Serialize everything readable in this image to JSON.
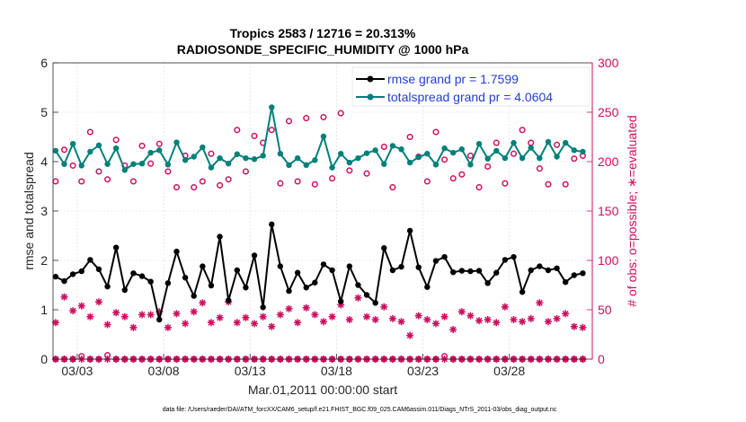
{
  "chart_data": {
    "type": "line",
    "title_line1": "Tropics 2583 / 12716 = 20.313%",
    "title_line2": "RADIOSONDE_SPECIFIC_HUMIDITY @ 1000 hPa",
    "xlabel": "Mar.01,2011 00:00:00 start",
    "ylabel_left": "rmse and totalspread",
    "ylabel_right": "# of obs: o=possible; ∗=evaluated",
    "footer": "data file: /Users/raeder/DAI/ATM_forcXX/CAM6_setup/f.e21.FHIST_BGC.f09_025.CAM6assim.011/Diags_NTrS_2011-03/obs_diag_output.nc",
    "xlim": [
      1.6,
      32.8
    ],
    "ylim_left": [
      0,
      6
    ],
    "ylim_right": [
      0,
      300
    ],
    "xticks": [
      3,
      8,
      13,
      18,
      23,
      28
    ],
    "xtick_labels": [
      "03/03",
      "03/08",
      "03/13",
      "03/18",
      "03/23",
      "03/28"
    ],
    "yticks_left": [
      0,
      1,
      2,
      3,
      4,
      5,
      6
    ],
    "yticks_right": [
      0,
      50,
      100,
      150,
      200,
      250,
      300
    ],
    "colors": {
      "rmse": "#000000",
      "spread": "#00807a",
      "obs": "#cc0f5e",
      "axis_right": "#cc0f5e",
      "legend_text": "#1f3fd6"
    },
    "legend": [
      {
        "label": "rmse grand pr = 1.7599",
        "series": "rmse"
      },
      {
        "label": "totalspread grand pr = 4.0604",
        "series": "spread"
      }
    ],
    "time": [
      1.75,
      2.25,
      2.75,
      3.25,
      3.75,
      4.25,
      4.75,
      5.25,
      5.75,
      6.25,
      6.75,
      7.25,
      7.75,
      8.25,
      8.75,
      9.25,
      9.75,
      10.25,
      10.75,
      11.25,
      11.75,
      12.25,
      12.75,
      13.25,
      13.75,
      14.25,
      14.75,
      15.25,
      15.75,
      16.25,
      16.75,
      17.25,
      17.75,
      18.25,
      18.75,
      19.25,
      19.75,
      20.25,
      20.75,
      21.25,
      21.75,
      22.25,
      22.75,
      23.25,
      23.75,
      24.25,
      24.75,
      25.25,
      25.75,
      26.25,
      26.75,
      27.25,
      27.75,
      28.25,
      28.75,
      29.25,
      29.75,
      30.25,
      30.75,
      31.25,
      31.75,
      32.25
    ],
    "series": [
      {
        "name": "rmse",
        "axis": "left",
        "values": [
          1.67,
          1.58,
          1.72,
          1.78,
          2.01,
          1.82,
          1.47,
          2.26,
          1.4,
          1.74,
          1.68,
          1.57,
          0.8,
          1.54,
          2.18,
          1.65,
          1.28,
          1.88,
          1.49,
          2.48,
          1.19,
          1.8,
          1.45,
          2.1,
          1.05,
          2.73,
          1.88,
          1.38,
          1.75,
          1.45,
          1.55,
          1.92,
          1.8,
          1.17,
          1.88,
          1.5,
          1.3,
          1.14,
          2.25,
          1.8,
          1.87,
          2.6,
          1.86,
          1.46,
          1.99,
          2.07,
          1.76,
          1.79,
          1.78,
          1.79,
          1.54,
          1.75,
          2.01,
          2.07,
          1.36,
          1.8,
          1.88,
          1.8,
          1.84,
          1.56,
          1.7,
          1.74
        ]
      },
      {
        "name": "totalspread",
        "axis": "left",
        "values": [
          4.22,
          3.95,
          4.36,
          3.92,
          4.2,
          4.33,
          3.95,
          4.27,
          3.83,
          3.95,
          3.96,
          4.18,
          4.23,
          3.94,
          4.39,
          4.03,
          4.1,
          4.29,
          3.88,
          4.07,
          3.96,
          4.15,
          4.07,
          4.05,
          4.12,
          5.1,
          4.16,
          3.93,
          4.07,
          3.93,
          4.03,
          4.51,
          3.88,
          4.16,
          3.98,
          4.07,
          4.17,
          4.23,
          3.95,
          4.32,
          4.25,
          3.98,
          4.09,
          4.16,
          3.94,
          4.27,
          4.18,
          4.25,
          3.94,
          4.36,
          4.06,
          4.22,
          4.07,
          4.38,
          4.07,
          4.28,
          4.07,
          4.4,
          4.1,
          4.38,
          4.23,
          4.2
        ]
      },
      {
        "name": "obs_possible",
        "axis": "right",
        "marker": "circle",
        "values": [
          180,
          212,
          196,
          180,
          230,
          190,
          182,
          222,
          196,
          180,
          216,
          198,
          218,
          190,
          174,
          206,
          174,
          180,
          208,
          176,
          182,
          232,
          190,
          226,
          219,
          232,
          178,
          241,
          180,
          244,
          177,
          245,
          183,
          249,
          191,
          266,
          188,
          267,
          215,
          174,
          262,
          225,
          205,
          180,
          230,
          202,
          183,
          187,
          206,
          174,
          195,
          219,
          178,
          208,
          232,
          219,
          193,
          177,
          217,
          177,
          203,
          206
        ]
      },
      {
        "name": "obs_evaluated",
        "axis": "right",
        "marker": "asterisk",
        "values": [
          37,
          63,
          49,
          54,
          43,
          58,
          35,
          47,
          43,
          32,
          45,
          45,
          48,
          32,
          46,
          36,
          48,
          57,
          37,
          42,
          58,
          37,
          42,
          36,
          43,
          33,
          45,
          51,
          37,
          52,
          45,
          38,
          43,
          55,
          40,
          62,
          43,
          40,
          53,
          41,
          38,
          24,
          44,
          40,
          36,
          43,
          30,
          48,
          44,
          39,
          40,
          37,
          53,
          40,
          38,
          41,
          57,
          38,
          41,
          46,
          33,
          32
        ]
      },
      {
        "name": "obs_zero_possible",
        "axis": "right",
        "marker": "circle",
        "values": [
          0,
          0,
          0,
          3,
          0,
          0,
          4,
          0,
          0,
          0,
          0,
          0,
          0,
          0,
          0,
          0,
          0,
          0,
          0,
          0,
          0,
          0,
          0,
          0,
          0,
          0,
          0,
          0,
          0,
          0,
          0,
          0,
          0,
          0,
          0,
          0,
          0,
          0,
          0,
          0,
          0,
          0,
          0,
          0,
          0,
          3,
          0,
          0,
          0,
          0,
          0,
          0,
          0,
          0,
          0,
          0,
          0,
          0,
          0,
          0,
          0,
          0
        ]
      },
      {
        "name": "obs_zero_evaluated",
        "axis": "right",
        "marker": "asterisk",
        "values": [
          0,
          0,
          0,
          0,
          0,
          0,
          0,
          0,
          0,
          0,
          0,
          0,
          0,
          0,
          0,
          0,
          0,
          0,
          0,
          0,
          0,
          0,
          0,
          0,
          0,
          0,
          0,
          0,
          0,
          0,
          0,
          0,
          0,
          0,
          0,
          0,
          0,
          0,
          0,
          0,
          0,
          0,
          0,
          0,
          0,
          0,
          0,
          0,
          0,
          0,
          0,
          0,
          0,
          0,
          0,
          0,
          0,
          0,
          0,
          0,
          0,
          0
        ]
      }
    ]
  }
}
